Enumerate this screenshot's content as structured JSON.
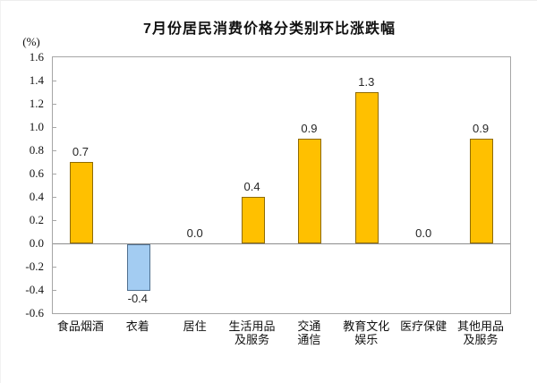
{
  "chart_data": {
    "type": "bar",
    "title": "7月份居民消费价格分类别环比涨跌幅",
    "ylabel": "(%)",
    "xlabel": "",
    "categories": [
      "食品烟酒",
      "衣着",
      "居住",
      "生活用品\n及服务",
      "交通\n通信",
      "教育文化\n娱乐",
      "医疗保健",
      "其他用品\n及服务"
    ],
    "values": [
      0.7,
      -0.4,
      0.0,
      0.4,
      0.9,
      1.3,
      0.0,
      0.9
    ],
    "data_labels": [
      "0.7",
      "-0.4",
      "0.0",
      "0.4",
      "0.9",
      "1.3",
      "0.0",
      "0.9"
    ],
    "ylim": [
      -0.6,
      1.6
    ],
    "ytick_step": 0.2,
    "grid": false,
    "legend": "none",
    "colors": {
      "positive_fill": "#FFC000",
      "positive_border": "#8F6B00",
      "negative_fill": "#A3CCF2",
      "negative_border": "#50708F",
      "axis": "#a6a6a6",
      "zero_line": "#8c8c8c",
      "text": "#111111"
    }
  }
}
